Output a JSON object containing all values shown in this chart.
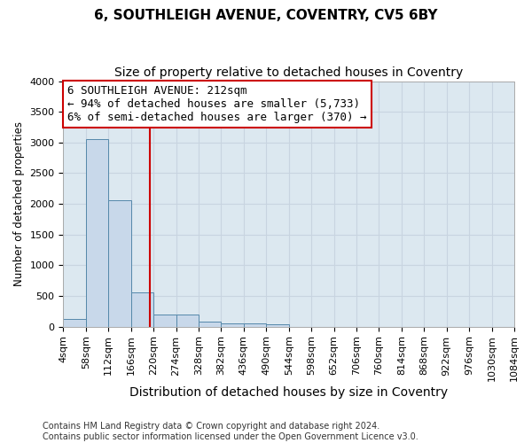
{
  "title1": "6, SOUTHLEIGH AVENUE, COVENTRY, CV5 6BY",
  "title2": "Size of property relative to detached houses in Coventry",
  "xlabel": "Distribution of detached houses by size in Coventry",
  "ylabel": "Number of detached properties",
  "bin_edges": [
    4,
    58,
    112,
    166,
    220,
    274,
    328,
    382,
    436,
    490,
    544,
    598,
    652,
    706,
    760,
    814,
    868,
    922,
    976,
    1030,
    1084
  ],
  "bar_heights": [
    130,
    3060,
    2060,
    560,
    200,
    200,
    80,
    60,
    50,
    40,
    0,
    0,
    0,
    0,
    0,
    0,
    0,
    0,
    0,
    0
  ],
  "bar_color": "#c8d8ea",
  "bar_edge_color": "#5588aa",
  "property_size": 212,
  "property_line_color": "#cc0000",
  "annotation_line1": "6 SOUTHLEIGH AVENUE: 212sqm",
  "annotation_line2": "← 94% of detached houses are smaller (5,733)",
  "annotation_line3": "6% of semi-detached houses are larger (370) →",
  "annotation_box_color": "#ffffff",
  "annotation_box_edge_color": "#cc0000",
  "ylim": [
    0,
    4000
  ],
  "yticks": [
    0,
    500,
    1000,
    1500,
    2000,
    2500,
    3000,
    3500,
    4000
  ],
  "grid_color": "#c8d4e0",
  "bg_color": "#dce8f0",
  "fig_bg_color": "#ffffff",
  "footer_text": "Contains HM Land Registry data © Crown copyright and database right 2024.\nContains public sector information licensed under the Open Government Licence v3.0.",
  "title1_fontsize": 11,
  "title2_fontsize": 10,
  "xlabel_fontsize": 10,
  "ylabel_fontsize": 8.5,
  "tick_fontsize": 8,
  "annotation_fontsize": 9,
  "footer_fontsize": 7
}
